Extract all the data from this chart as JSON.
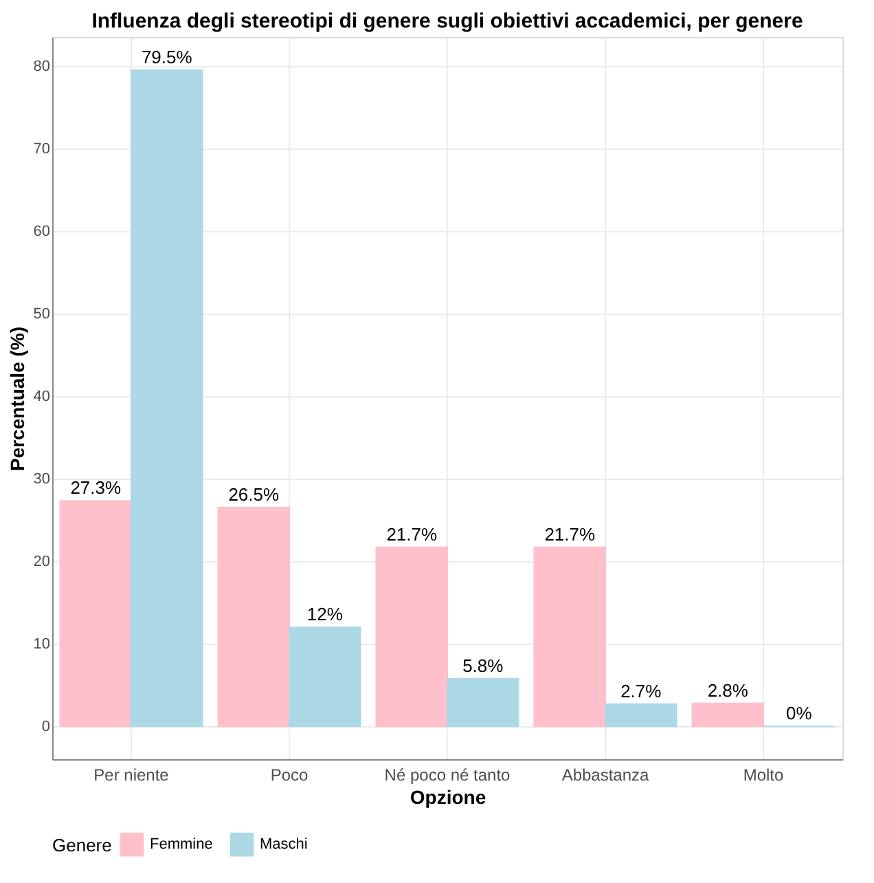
{
  "chart_data": {
    "type": "bar",
    "title": "Influenza degli stereotipi di genere sugli obiettivi accademici, per genere",
    "xlabel": "Opzione",
    "ylabel": "Percentuale (%)",
    "legend_title": "Genere",
    "categories": [
      "Per niente",
      "Poco",
      "Né poco né tanto",
      "Abbastanza",
      "Molto"
    ],
    "series": [
      {
        "name": "Femmine",
        "color": "#ffc0cb",
        "values": [
          27.3,
          26.5,
          21.7,
          21.7,
          2.8
        ],
        "value_labels": [
          "27.3%",
          "26.5%",
          "21.7%",
          "21.7%",
          "2.8%"
        ]
      },
      {
        "name": "Maschi",
        "color": "#add8e6",
        "values": [
          79.5,
          12,
          5.8,
          2.7,
          0
        ],
        "value_labels": [
          "79.5%",
          "12%",
          "5.8%",
          "2.7%",
          "0%"
        ]
      }
    ],
    "ylim": [
      -3.975,
      83.475
    ],
    "yticks": [
      0,
      10,
      20,
      30,
      40,
      50,
      60,
      70,
      80
    ],
    "grid": true,
    "legend": "bottom"
  }
}
